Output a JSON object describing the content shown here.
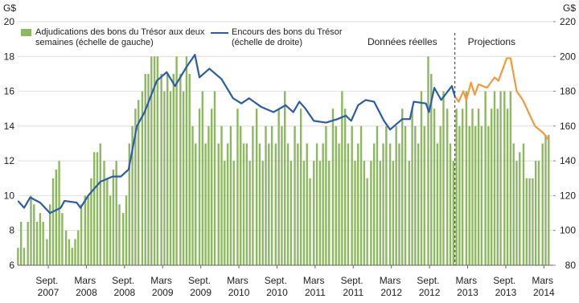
{
  "chart_data": {
    "type": "bar-line",
    "y_title": "G$",
    "y2_title": "G$",
    "ylim": [
      6,
      20
    ],
    "yticks": [
      6,
      8,
      10,
      12,
      14,
      16,
      18,
      20
    ],
    "y2lim": [
      80,
      220
    ],
    "y2ticks": [
      80,
      100,
      120,
      140,
      160,
      180,
      200,
      220
    ],
    "xlim": [
      2007.266,
      2014.29
    ],
    "xticks": [
      {
        "value": 2007.667,
        "label": "Sept. 2007"
      },
      {
        "value": 2008.167,
        "label": "Mars 2008"
      },
      {
        "value": 2008.667,
        "label": "Sept. 2008"
      },
      {
        "value": 2009.167,
        "label": "Mars 2009"
      },
      {
        "value": 2009.667,
        "label": "Sept. 2009"
      },
      {
        "value": 2010.167,
        "label": "Mars 2010"
      },
      {
        "value": 2010.667,
        "label": "Sept. 2010"
      },
      {
        "value": 2011.167,
        "label": "Mars 2011"
      },
      {
        "value": 2011.667,
        "label": "Sept. 2011"
      },
      {
        "value": 2012.167,
        "label": "Mars 2012"
      },
      {
        "value": 2012.667,
        "label": "Sept. 2012"
      },
      {
        "value": 2013.167,
        "label": "Mars 2013"
      },
      {
        "value": 2013.667,
        "label": "Sept. 2013"
      },
      {
        "value": 2014.167,
        "label": "Mars 2014"
      }
    ],
    "grid": true,
    "divider": {
      "x": 2013.0,
      "left_label": "Données réelles",
      "right_label": "Projections"
    },
    "series": [
      {
        "name": "Adjudications des bons du Trésor aux deux semaines (échelle de gauche)",
        "type": "bar",
        "color": "#8cb860",
        "x": [
          2007.27,
          2007.31,
          2007.35,
          2007.4,
          2007.44,
          2007.48,
          2007.52,
          2007.56,
          2007.6,
          2007.65,
          2007.69,
          2007.73,
          2007.77,
          2007.81,
          2007.85,
          2007.9,
          2007.94,
          2007.98,
          2008.02,
          2008.06,
          2008.1,
          2008.15,
          2008.19,
          2008.23,
          2008.27,
          2008.31,
          2008.35,
          2008.4,
          2008.44,
          2008.48,
          2008.52,
          2008.56,
          2008.6,
          2008.65,
          2008.69,
          2008.73,
          2008.77,
          2008.81,
          2008.85,
          2008.9,
          2008.94,
          2008.98,
          2009.02,
          2009.06,
          2009.1,
          2009.15,
          2009.19,
          2009.23,
          2009.27,
          2009.31,
          2009.35,
          2009.4,
          2009.44,
          2009.48,
          2009.52,
          2009.56,
          2009.6,
          2009.65,
          2009.69,
          2009.73,
          2009.77,
          2009.81,
          2009.85,
          2009.9,
          2009.94,
          2009.98,
          2010.02,
          2010.06,
          2010.1,
          2010.15,
          2010.19,
          2010.23,
          2010.27,
          2010.31,
          2010.35,
          2010.4,
          2010.44,
          2010.48,
          2010.52,
          2010.56,
          2010.6,
          2010.65,
          2010.69,
          2010.73,
          2010.77,
          2010.81,
          2010.85,
          2010.9,
          2010.94,
          2010.98,
          2011.02,
          2011.06,
          2011.1,
          2011.15,
          2011.19,
          2011.23,
          2011.27,
          2011.31,
          2011.35,
          2011.4,
          2011.44,
          2011.48,
          2011.52,
          2011.56,
          2011.6,
          2011.65,
          2011.69,
          2011.73,
          2011.77,
          2011.81,
          2011.85,
          2011.9,
          2011.94,
          2011.98,
          2012.02,
          2012.06,
          2012.1,
          2012.15,
          2012.19,
          2012.23,
          2012.27,
          2012.31,
          2012.35,
          2012.4,
          2012.44,
          2012.48,
          2012.52,
          2012.56,
          2012.6,
          2012.65,
          2012.69,
          2012.73,
          2012.77,
          2012.81,
          2012.85,
          2012.9,
          2012.94,
          2012.98,
          2013.02,
          2013.06,
          2013.1,
          2013.15,
          2013.19,
          2013.23,
          2013.27,
          2013.31,
          2013.35,
          2013.4,
          2013.44,
          2013.48,
          2013.52,
          2013.56,
          2013.6,
          2013.65,
          2013.69,
          2013.73,
          2013.77,
          2013.81,
          2013.85,
          2013.9,
          2013.94,
          2013.98,
          2014.02,
          2014.06,
          2014.1,
          2014.15,
          2014.19,
          2014.23
        ],
        "values": [
          7,
          8.5,
          7,
          8.5,
          10,
          9.5,
          8.5,
          9,
          8.5,
          7.5,
          9.5,
          11,
          11.5,
          12,
          9,
          8,
          7.5,
          7,
          7.5,
          8,
          9.5,
          10,
          10,
          11,
          12.5,
          12.5,
          13,
          12,
          11,
          10,
          11.5,
          12,
          9.5,
          9,
          10,
          13,
          14,
          15,
          15.5,
          16,
          17,
          17,
          18,
          18,
          18,
          17,
          16,
          17,
          16,
          17,
          18,
          17,
          16,
          18,
          17,
          14,
          13,
          15,
          16,
          13,
          14,
          15,
          16,
          13,
          14,
          12,
          13,
          14,
          12,
          15,
          14,
          13,
          13,
          12,
          14,
          15,
          13,
          12,
          14,
          13,
          14,
          13,
          15,
          14,
          16,
          13,
          12,
          14,
          13,
          15,
          12,
          13,
          11,
          12,
          13,
          12,
          13,
          14,
          12,
          15,
          14,
          13,
          16,
          15,
          13,
          14,
          12,
          13,
          14,
          12,
          11,
          12,
          13,
          14,
          12,
          13,
          14,
          13,
          12,
          14,
          13,
          15,
          14,
          12,
          15,
          14,
          13,
          16,
          14,
          18,
          17,
          15,
          13,
          14,
          16,
          15,
          13,
          12,
          15,
          14,
          15,
          16,
          14,
          15,
          14,
          15,
          14,
          16,
          14,
          15,
          16,
          15,
          16,
          16,
          15,
          16,
          13,
          12,
          12.5,
          13,
          11,
          11,
          11,
          12,
          12,
          13,
          13.5,
          13.5
        ]
      },
      {
        "name": "Encours des bons du Trésor (échelle de droite)",
        "type": "line",
        "axis": "y2",
        "color": "#2b5ca8",
        "x": [
          2007.27,
          2007.35,
          2007.43,
          2007.56,
          2007.69,
          2007.83,
          2007.88,
          2008.04,
          2008.09,
          2008.19,
          2008.35,
          2008.51,
          2008.62,
          2008.72,
          2008.83,
          2008.93,
          2009.09,
          2009.22,
          2009.33,
          2009.48,
          2009.59,
          2009.65,
          2009.78,
          2009.94,
          2010.09,
          2010.2,
          2010.3,
          2010.46,
          2010.62,
          2010.78,
          2010.88,
          2010.96,
          2011.04,
          2011.15,
          2011.31,
          2011.46,
          2011.57,
          2011.64,
          2011.73,
          2011.83,
          2011.94,
          2012.07,
          2012.15,
          2012.31,
          2012.41,
          2012.46,
          2012.62,
          2012.66,
          2012.73,
          2012.82,
          2012.96,
          2013.0
        ],
        "values": [
          117,
          113,
          119,
          116,
          110,
          113,
          117,
          116,
          113,
          120,
          128,
          131,
          131,
          135,
          160,
          168,
          186,
          191,
          183,
          194,
          201,
          188,
          193,
          187,
          176,
          173,
          176,
          171,
          168,
          172,
          168,
          174,
          170,
          163,
          162,
          164,
          166,
          163,
          172,
          175,
          174,
          163,
          158,
          164,
          164,
          174,
          173,
          168,
          182,
          175,
          183,
          177
        ]
      },
      {
        "type": "line",
        "axis": "y2",
        "color": "#f39a3c",
        "x": [
          2013.0,
          2013.05,
          2013.11,
          2013.15,
          2013.21,
          2013.26,
          2013.31,
          2013.42,
          2013.52,
          2013.57,
          2013.68,
          2013.73,
          2013.81,
          2013.89,
          2014.05,
          2014.16,
          2014.23
        ],
        "values": [
          177,
          174,
          180,
          175,
          185,
          178,
          184,
          182,
          188,
          186,
          199,
          199,
          180,
          175,
          160,
          156,
          152
        ]
      }
    ]
  }
}
